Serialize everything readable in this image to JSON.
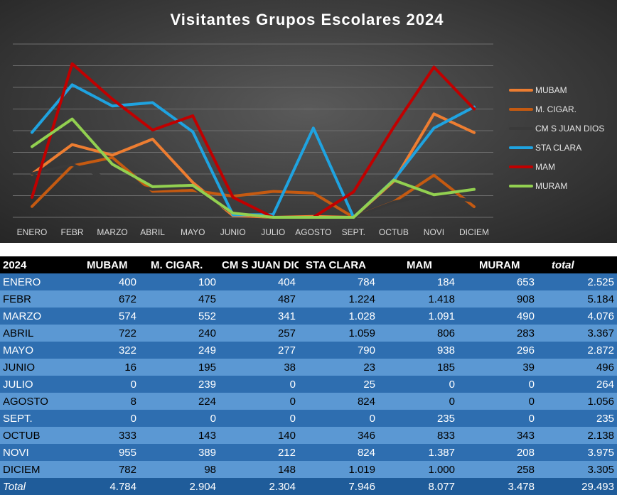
{
  "chart_data": {
    "type": "line",
    "title": "Visitantes Grupos Escolares 2024",
    "categories": [
      "ENERO",
      "FEBR",
      "MARZO",
      "ABRIL",
      "MAYO",
      "JUNIO",
      "JULIO",
      "AGOSTO",
      "SEPT.",
      "OCTUB",
      "NOVI",
      "DICIEM"
    ],
    "ylim": [
      0,
      1600
    ],
    "grid": true,
    "legend": "right",
    "series": [
      {
        "name": "MUBAM",
        "color": "#ed7d31",
        "values": [
          400,
          672,
          574,
          722,
          322,
          16,
          0,
          8,
          0,
          333,
          955,
          782
        ]
      },
      {
        "name": "M. CIGAR.",
        "color": "#c55a11",
        "values": [
          100,
          475,
          552,
          240,
          249,
          195,
          239,
          224,
          0,
          143,
          389,
          98
        ]
      },
      {
        "name": "CM S JUAN DIOS",
        "color": "#3a3a3a",
        "values": [
          404,
          487,
          341,
          257,
          277,
          38,
          0,
          0,
          0,
          140,
          212,
          148
        ]
      },
      {
        "name": "STA CLARA",
        "color": "#1fa3e0",
        "values": [
          784,
          1224,
          1028,
          1059,
          790,
          23,
          25,
          824,
          0,
          346,
          824,
          1019
        ]
      },
      {
        "name": "MAM",
        "color": "#c00000",
        "values": [
          184,
          1418,
          1091,
          806,
          938,
          185,
          0,
          0,
          235,
          833,
          1387,
          1000
        ]
      },
      {
        "name": "MURAM",
        "color": "#92d050",
        "values": [
          653,
          908,
          490,
          283,
          296,
          39,
          0,
          0,
          0,
          343,
          208,
          258
        ]
      }
    ]
  },
  "table": {
    "headers": [
      "2024",
      "MUBAM",
      "M. CIGAR.",
      "CM S JUAN DIOS",
      "STA CLARA",
      "MAM",
      "MURAM",
      "total"
    ],
    "rows": [
      [
        "ENERO",
        "400",
        "100",
        "404",
        "784",
        "184",
        "653",
        "2.525"
      ],
      [
        "FEBR",
        "672",
        "475",
        "487",
        "1.224",
        "1.418",
        "908",
        "5.184"
      ],
      [
        "MARZO",
        "574",
        "552",
        "341",
        "1.028",
        "1.091",
        "490",
        "4.076"
      ],
      [
        "ABRIL",
        "722",
        "240",
        "257",
        "1.059",
        "806",
        "283",
        "3.367"
      ],
      [
        "MAYO",
        "322",
        "249",
        "277",
        "790",
        "938",
        "296",
        "2.872"
      ],
      [
        "JUNIO",
        "16",
        "195",
        "38",
        "23",
        "185",
        "39",
        "496"
      ],
      [
        "JULIO",
        "0",
        "239",
        "0",
        "25",
        "0",
        "0",
        "264"
      ],
      [
        "AGOSTO",
        "8",
        "224",
        "0",
        "824",
        "0",
        "0",
        "1.056"
      ],
      [
        "SEPT.",
        "0",
        "0",
        "0",
        "0",
        "235",
        "0",
        "235"
      ],
      [
        "OCTUB",
        "333",
        "143",
        "140",
        "346",
        "833",
        "343",
        "2.138"
      ],
      [
        "NOVI",
        "955",
        "389",
        "212",
        "824",
        "1.387",
        "208",
        "3.975"
      ],
      [
        "DICIEM",
        "782",
        "98",
        "148",
        "1.019",
        "1.000",
        "258",
        "3.305"
      ]
    ],
    "footer": [
      "Total",
      "4.784",
      "2.904",
      "2.304",
      "7.946",
      "8.077",
      "3.478",
      "29.493"
    ]
  }
}
